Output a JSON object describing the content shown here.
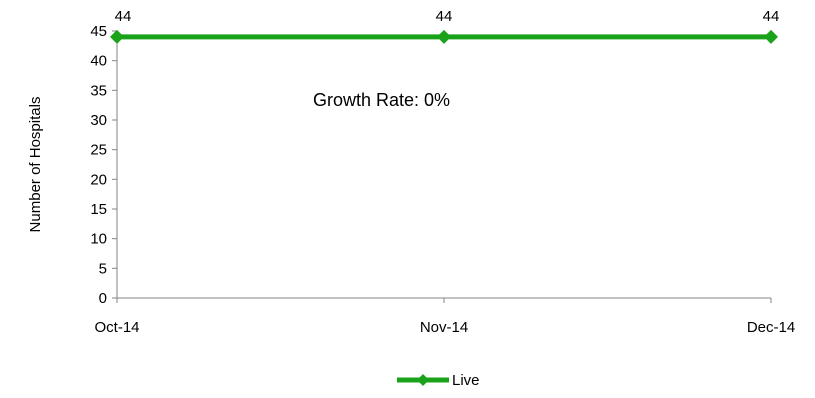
{
  "chart_data": {
    "type": "line",
    "categories": [
      "Oct-14",
      "Nov-14",
      "Dec-14"
    ],
    "series": [
      {
        "name": "Live",
        "values": [
          44,
          44,
          44
        ],
        "color": "#1aa31a",
        "marker": "diamond"
      }
    ],
    "data_labels": [
      "44",
      "44",
      "44"
    ],
    "xlabel": "",
    "ylabel": "Number of Hospitals",
    "ylim": [
      0,
      45
    ],
    "yticks": [
      "0",
      "5",
      "10",
      "15",
      "20",
      "25",
      "30",
      "35",
      "40",
      "45"
    ],
    "annotation": "Growth Rate:  0%",
    "grid": false,
    "legend_position": "bottom"
  }
}
